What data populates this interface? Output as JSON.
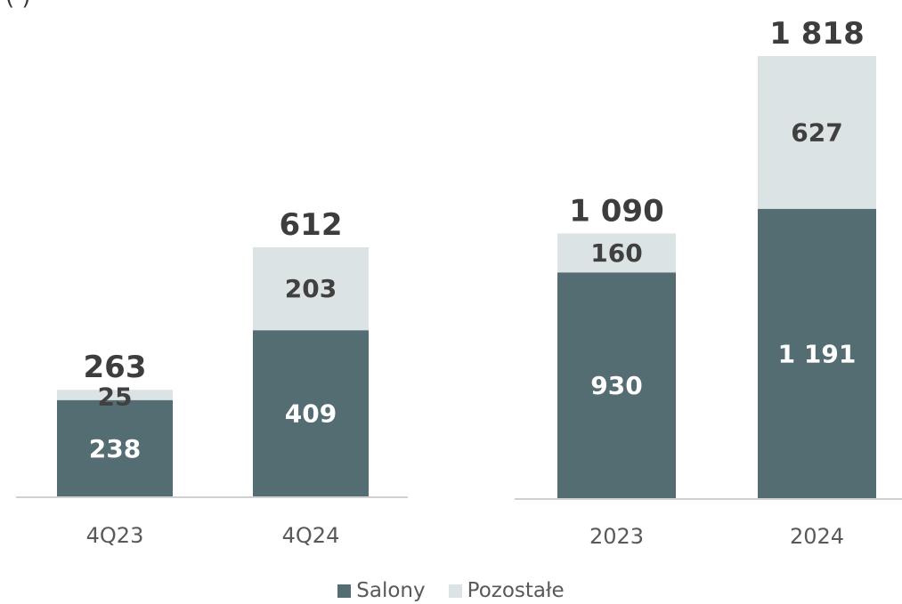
{
  "chart_data": [
    {
      "type": "bar",
      "stacked": true,
      "categories": [
        "4Q23",
        "4Q24"
      ],
      "series": [
        {
          "name": "Salony",
          "values": [
            238,
            409
          ],
          "labels": [
            "238",
            "409"
          ],
          "color": "#536d72"
        },
        {
          "name": "Pozostałe",
          "values": [
            25,
            203
          ],
          "labels": [
            "25",
            "203"
          ],
          "color": "#dce3e5"
        }
      ],
      "totals": [
        263,
        612
      ],
      "total_labels": [
        "263",
        "612"
      ],
      "ylim": [
        0,
        700
      ]
    },
    {
      "type": "bar",
      "stacked": true,
      "categories": [
        "2023",
        "2024"
      ],
      "series": [
        {
          "name": "Salony",
          "values": [
            930,
            1191
          ],
          "labels": [
            "930",
            "1 191"
          ],
          "color": "#536d72"
        },
        {
          "name": "Pozostałe",
          "values": [
            160,
            627
          ],
          "labels": [
            "160",
            "627"
          ],
          "color": "#dce3e5"
        }
      ],
      "totals": [
        1090,
        1818
      ],
      "total_labels": [
        "1 090",
        "1 818"
      ],
      "ylim": [
        0,
        1818
      ]
    }
  ],
  "legend": [
    {
      "label": "Salony",
      "color": "#536d72"
    },
    {
      "label": "Pozostałe",
      "color": "#dce3e5"
    }
  ],
  "header_fragment": "( )"
}
